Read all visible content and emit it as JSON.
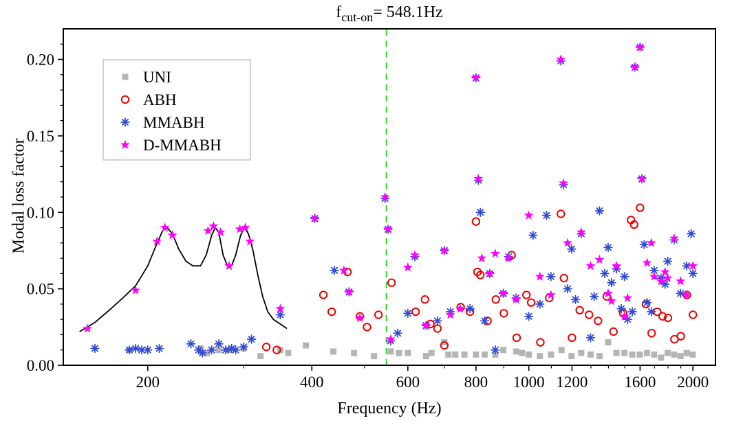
{
  "chart_data": {
    "type": "scatter",
    "title": "f_cut-on= 548.1Hz",
    "title_parts": {
      "base": "f",
      "sub": "cut-on",
      "rest": "= 548.1Hz"
    },
    "xlabel": "Frequency (Hz)",
    "ylabel": "Modal loss factor",
    "x_scale": "log",
    "xlim": [
      140,
      2200
    ],
    "ylim": [
      0,
      0.22
    ],
    "grid": false,
    "x_ticks": [
      {
        "v": 200,
        "label": "200"
      },
      {
        "v": 400,
        "label": "400"
      },
      {
        "v": 600,
        "label": "600"
      },
      {
        "v": 800,
        "label": "800"
      },
      {
        "v": 1000,
        "label": "1000"
      },
      {
        "v": 1200,
        "label": "1200"
      },
      {
        "v": 1600,
        "label": "1600"
      },
      {
        "v": 2000,
        "label": "2000"
      }
    ],
    "x_minor_ticks": [
      300,
      500,
      700,
      900,
      1100,
      1300,
      1400,
      1500,
      1700,
      1800,
      1900
    ],
    "y_ticks": [
      {
        "v": 0.0,
        "label": "0.00"
      },
      {
        "v": 0.05,
        "label": "0.05"
      },
      {
        "v": 0.1,
        "label": "0.10"
      },
      {
        "v": 0.15,
        "label": "0.15"
      },
      {
        "v": 0.2,
        "label": "0.20"
      }
    ],
    "y_minor_step": 0.01,
    "legend": {
      "position": "top-left",
      "entries": [
        "UNI",
        "ABH",
        "MMABH",
        "D-MMABH"
      ]
    },
    "vline": {
      "x": 548.1,
      "color": "#2bd42b",
      "style": "dashed",
      "label": "cut-on frequency"
    },
    "curve": {
      "name": "host-beam response curve",
      "color": "#000000",
      "points": [
        [
          150,
          0.022
        ],
        [
          160,
          0.028
        ],
        [
          170,
          0.036
        ],
        [
          180,
          0.044
        ],
        [
          190,
          0.052
        ],
        [
          200,
          0.065
        ],
        [
          207,
          0.078
        ],
        [
          213,
          0.088
        ],
        [
          217,
          0.09
        ],
        [
          222,
          0.086
        ],
        [
          228,
          0.076
        ],
        [
          235,
          0.068
        ],
        [
          242,
          0.065
        ],
        [
          250,
          0.065
        ],
        [
          256,
          0.072
        ],
        [
          262,
          0.085
        ],
        [
          266,
          0.09
        ],
        [
          270,
          0.087
        ],
        [
          275,
          0.072
        ],
        [
          280,
          0.065
        ],
        [
          285,
          0.065
        ],
        [
          290,
          0.072
        ],
        [
          296,
          0.085
        ],
        [
          301,
          0.09
        ],
        [
          306,
          0.086
        ],
        [
          312,
          0.075
        ],
        [
          318,
          0.06
        ],
        [
          325,
          0.045
        ],
        [
          332,
          0.035
        ],
        [
          340,
          0.03
        ],
        [
          350,
          0.027
        ],
        [
          360,
          0.024
        ]
      ]
    },
    "series": [
      {
        "name": "UNI",
        "marker": "square",
        "color": "#b5b5b5",
        "points": [
          [
            185,
            0.01
          ],
          [
            250,
            0.011
          ],
          [
            257,
            0.008
          ],
          [
            270,
            0.01
          ],
          [
            282,
            0.01
          ],
          [
            300,
            0.011
          ],
          [
            322,
            0.006
          ],
          [
            350,
            0.01
          ],
          [
            362,
            0.008
          ],
          [
            390,
            0.013
          ],
          [
            438,
            0.009
          ],
          [
            478,
            0.008
          ],
          [
            520,
            0.006
          ],
          [
            558,
            0.009
          ],
          [
            578,
            0.008
          ],
          [
            600,
            0.008
          ],
          [
            648,
            0.006
          ],
          [
            663,
            0.008
          ],
          [
            700,
            0.015
          ],
          [
            712,
            0.007
          ],
          [
            733,
            0.007
          ],
          [
            762,
            0.007
          ],
          [
            800,
            0.007
          ],
          [
            830,
            0.007
          ],
          [
            868,
            0.007
          ],
          [
            898,
            0.01
          ],
          [
            948,
            0.009
          ],
          [
            972,
            0.008
          ],
          [
            1000,
            0.007
          ],
          [
            1048,
            0.006
          ],
          [
            1098,
            0.007
          ],
          [
            1148,
            0.01
          ],
          [
            1198,
            0.006
          ],
          [
            1248,
            0.008
          ],
          [
            1298,
            0.007
          ],
          [
            1348,
            0.006
          ],
          [
            1398,
            0.015
          ],
          [
            1448,
            0.008
          ],
          [
            1498,
            0.008
          ],
          [
            1548,
            0.007
          ],
          [
            1598,
            0.007
          ],
          [
            1648,
            0.008
          ],
          [
            1698,
            0.007
          ],
          [
            1748,
            0.005
          ],
          [
            1798,
            0.008
          ],
          [
            1848,
            0.007
          ],
          [
            1898,
            0.006
          ],
          [
            1948,
            0.008
          ],
          [
            1998,
            0.007
          ]
        ]
      },
      {
        "name": "ABH",
        "marker": "open-circle",
        "color": "#ee0000",
        "points": [
          [
            330,
            0.012
          ],
          [
            345,
            0.01
          ],
          [
            420,
            0.046
          ],
          [
            435,
            0.035
          ],
          [
            465,
            0.061
          ],
          [
            490,
            0.032
          ],
          [
            505,
            0.025
          ],
          [
            530,
            0.033
          ],
          [
            560,
            0.054
          ],
          [
            620,
            0.035
          ],
          [
            645,
            0.043
          ],
          [
            660,
            0.027
          ],
          [
            680,
            0.024
          ],
          [
            700,
            0.013
          ],
          [
            750,
            0.038
          ],
          [
            780,
            0.035
          ],
          [
            800,
            0.094
          ],
          [
            805,
            0.061
          ],
          [
            815,
            0.059
          ],
          [
            840,
            0.029
          ],
          [
            870,
            0.043
          ],
          [
            900,
            0.034
          ],
          [
            930,
            0.072
          ],
          [
            950,
            0.018
          ],
          [
            990,
            0.046
          ],
          [
            1010,
            0.041
          ],
          [
            1050,
            0.015
          ],
          [
            1090,
            0.044
          ],
          [
            1145,
            0.099
          ],
          [
            1160,
            0.057
          ],
          [
            1200,
            0.018
          ],
          [
            1240,
            0.036
          ],
          [
            1290,
            0.033
          ],
          [
            1340,
            0.029
          ],
          [
            1390,
            0.045
          ],
          [
            1430,
            0.022
          ],
          [
            1490,
            0.034
          ],
          [
            1540,
            0.095
          ],
          [
            1560,
            0.092
          ],
          [
            1600,
            0.103
          ],
          [
            1640,
            0.04
          ],
          [
            1680,
            0.021
          ],
          [
            1720,
            0.035
          ],
          [
            1760,
            0.032
          ],
          [
            1800,
            0.031
          ],
          [
            1850,
            0.017
          ],
          [
            1900,
            0.019
          ],
          [
            1950,
            0.046
          ],
          [
            2000,
            0.033
          ]
        ]
      },
      {
        "name": "MMABH",
        "marker": "asterisk",
        "color": "#2f4ad2",
        "points": [
          [
            160,
            0.011
          ],
          [
            185,
            0.01
          ],
          [
            190,
            0.011
          ],
          [
            195,
            0.01
          ],
          [
            200,
            0.01
          ],
          [
            210,
            0.011
          ],
          [
            240,
            0.014
          ],
          [
            248,
            0.01
          ],
          [
            252,
            0.008
          ],
          [
            262,
            0.01
          ],
          [
            270,
            0.014
          ],
          [
            278,
            0.01
          ],
          [
            285,
            0.011
          ],
          [
            290,
            0.01
          ],
          [
            300,
            0.012
          ],
          [
            310,
            0.017
          ],
          [
            350,
            0.033
          ],
          [
            405,
            0.096
          ],
          [
            440,
            0.062
          ],
          [
            468,
            0.048
          ],
          [
            545,
            0.109
          ],
          [
            552,
            0.089
          ],
          [
            558,
            0.016
          ],
          [
            575,
            0.021
          ],
          [
            600,
            0.034
          ],
          [
            618,
            0.071
          ],
          [
            648,
            0.026
          ],
          [
            680,
            0.029
          ],
          [
            700,
            0.075
          ],
          [
            718,
            0.035
          ],
          [
            780,
            0.037
          ],
          [
            800,
            0.188
          ],
          [
            808,
            0.121
          ],
          [
            815,
            0.1
          ],
          [
            830,
            0.029
          ],
          [
            848,
            0.06
          ],
          [
            868,
            0.01
          ],
          [
            898,
            0.047
          ],
          [
            918,
            0.071
          ],
          [
            948,
            0.044
          ],
          [
            1000,
            0.032
          ],
          [
            1018,
            0.085
          ],
          [
            1048,
            0.04
          ],
          [
            1078,
            0.098
          ],
          [
            1098,
            0.058
          ],
          [
            1145,
            0.199
          ],
          [
            1158,
            0.118
          ],
          [
            1178,
            0.05
          ],
          [
            1198,
            0.076
          ],
          [
            1218,
            0.043
          ],
          [
            1248,
            0.086
          ],
          [
            1298,
            0.018
          ],
          [
            1318,
            0.045
          ],
          [
            1348,
            0.101
          ],
          [
            1378,
            0.06
          ],
          [
            1398,
            0.077
          ],
          [
            1418,
            0.054
          ],
          [
            1448,
            0.063
          ],
          [
            1478,
            0.037
          ],
          [
            1498,
            0.058
          ],
          [
            1518,
            0.03
          ],
          [
            1548,
            0.035
          ],
          [
            1565,
            0.195
          ],
          [
            1600,
            0.208
          ],
          [
            1612,
            0.122
          ],
          [
            1628,
            0.079
          ],
          [
            1648,
            0.041
          ],
          [
            1678,
            0.035
          ],
          [
            1698,
            0.062
          ],
          [
            1748,
            0.057
          ],
          [
            1778,
            0.053
          ],
          [
            1798,
            0.068
          ],
          [
            1848,
            0.082
          ],
          [
            1898,
            0.047
          ],
          [
            1948,
            0.065
          ],
          [
            1985,
            0.086
          ],
          [
            2000,
            0.06
          ]
        ]
      },
      {
        "name": "D-MMABH",
        "marker": "star",
        "color": "#ff00ff",
        "points": [
          [
            155,
            0.024
          ],
          [
            190,
            0.049
          ],
          [
            208,
            0.081
          ],
          [
            215,
            0.09
          ],
          [
            222,
            0.085
          ],
          [
            258,
            0.088
          ],
          [
            264,
            0.091
          ],
          [
            272,
            0.087
          ],
          [
            282,
            0.065
          ],
          [
            295,
            0.089
          ],
          [
            302,
            0.09
          ],
          [
            308,
            0.081
          ],
          [
            350,
            0.037
          ],
          [
            405,
            0.096
          ],
          [
            458,
            0.062
          ],
          [
            468,
            0.048
          ],
          [
            490,
            0.031
          ],
          [
            545,
            0.11
          ],
          [
            552,
            0.089
          ],
          [
            558,
            0.017
          ],
          [
            600,
            0.064
          ],
          [
            618,
            0.072
          ],
          [
            648,
            0.026
          ],
          [
            700,
            0.075
          ],
          [
            718,
            0.033
          ],
          [
            748,
            0.037
          ],
          [
            800,
            0.188
          ],
          [
            808,
            0.122
          ],
          [
            820,
            0.07
          ],
          [
            848,
            0.06
          ],
          [
            868,
            0.073
          ],
          [
            898,
            0.047
          ],
          [
            918,
            0.07
          ],
          [
            948,
            0.043
          ],
          [
            1000,
            0.098
          ],
          [
            1048,
            0.058
          ],
          [
            1098,
            0.046
          ],
          [
            1145,
            0.2
          ],
          [
            1158,
            0.119
          ],
          [
            1178,
            0.08
          ],
          [
            1248,
            0.087
          ],
          [
            1298,
            0.065
          ],
          [
            1348,
            0.069
          ],
          [
            1398,
            0.047
          ],
          [
            1418,
            0.042
          ],
          [
            1448,
            0.065
          ],
          [
            1498,
            0.032
          ],
          [
            1518,
            0.044
          ],
          [
            1565,
            0.195
          ],
          [
            1600,
            0.208
          ],
          [
            1612,
            0.122
          ],
          [
            1648,
            0.067
          ],
          [
            1678,
            0.08
          ],
          [
            1698,
            0.058
          ],
          [
            1748,
            0.055
          ],
          [
            1778,
            0.061
          ],
          [
            1798,
            0.057
          ],
          [
            1848,
            0.083
          ],
          [
            1898,
            0.055
          ],
          [
            1948,
            0.046
          ],
          [
            2000,
            0.065
          ]
        ]
      }
    ]
  }
}
